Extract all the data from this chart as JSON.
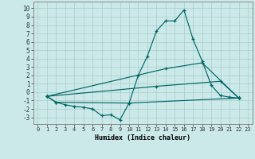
{
  "xlabel": "Humidex (Indice chaleur)",
  "xlim": [
    -0.5,
    23.5
  ],
  "ylim": [
    -3.8,
    10.8
  ],
  "xticks": [
    0,
    1,
    2,
    3,
    4,
    5,
    6,
    7,
    8,
    9,
    10,
    11,
    12,
    13,
    14,
    15,
    16,
    17,
    18,
    19,
    20,
    21,
    22,
    23
  ],
  "yticks": [
    -3,
    -2,
    -1,
    0,
    1,
    2,
    3,
    4,
    5,
    6,
    7,
    8,
    9,
    10
  ],
  "bg_color": "#cce9e9",
  "grid_color": "#aacccc",
  "line_color": "#006666",
  "lines": [
    {
      "x": [
        1,
        2,
        3,
        4,
        5,
        6,
        7,
        8,
        9,
        10,
        11,
        12,
        13,
        14,
        15,
        16,
        17,
        18,
        19,
        20,
        21,
        22
      ],
      "y": [
        -0.5,
        -1.2,
        -1.5,
        -1.7,
        -1.8,
        -2.0,
        -2.8,
        -2.7,
        -3.3,
        -1.3,
        2.0,
        4.3,
        7.3,
        8.5,
        8.5,
        9.8,
        6.3,
        3.7,
        0.8,
        -0.4,
        -0.6,
        -0.7
      ]
    },
    {
      "x": [
        1,
        2,
        10,
        22
      ],
      "y": [
        -0.5,
        -1.2,
        -1.3,
        -0.7
      ]
    },
    {
      "x": [
        1,
        13,
        20,
        22
      ],
      "y": [
        -0.5,
        0.7,
        1.3,
        -0.7
      ]
    },
    {
      "x": [
        1,
        14,
        18,
        22
      ],
      "y": [
        -0.5,
        2.8,
        3.5,
        -0.7
      ]
    }
  ]
}
